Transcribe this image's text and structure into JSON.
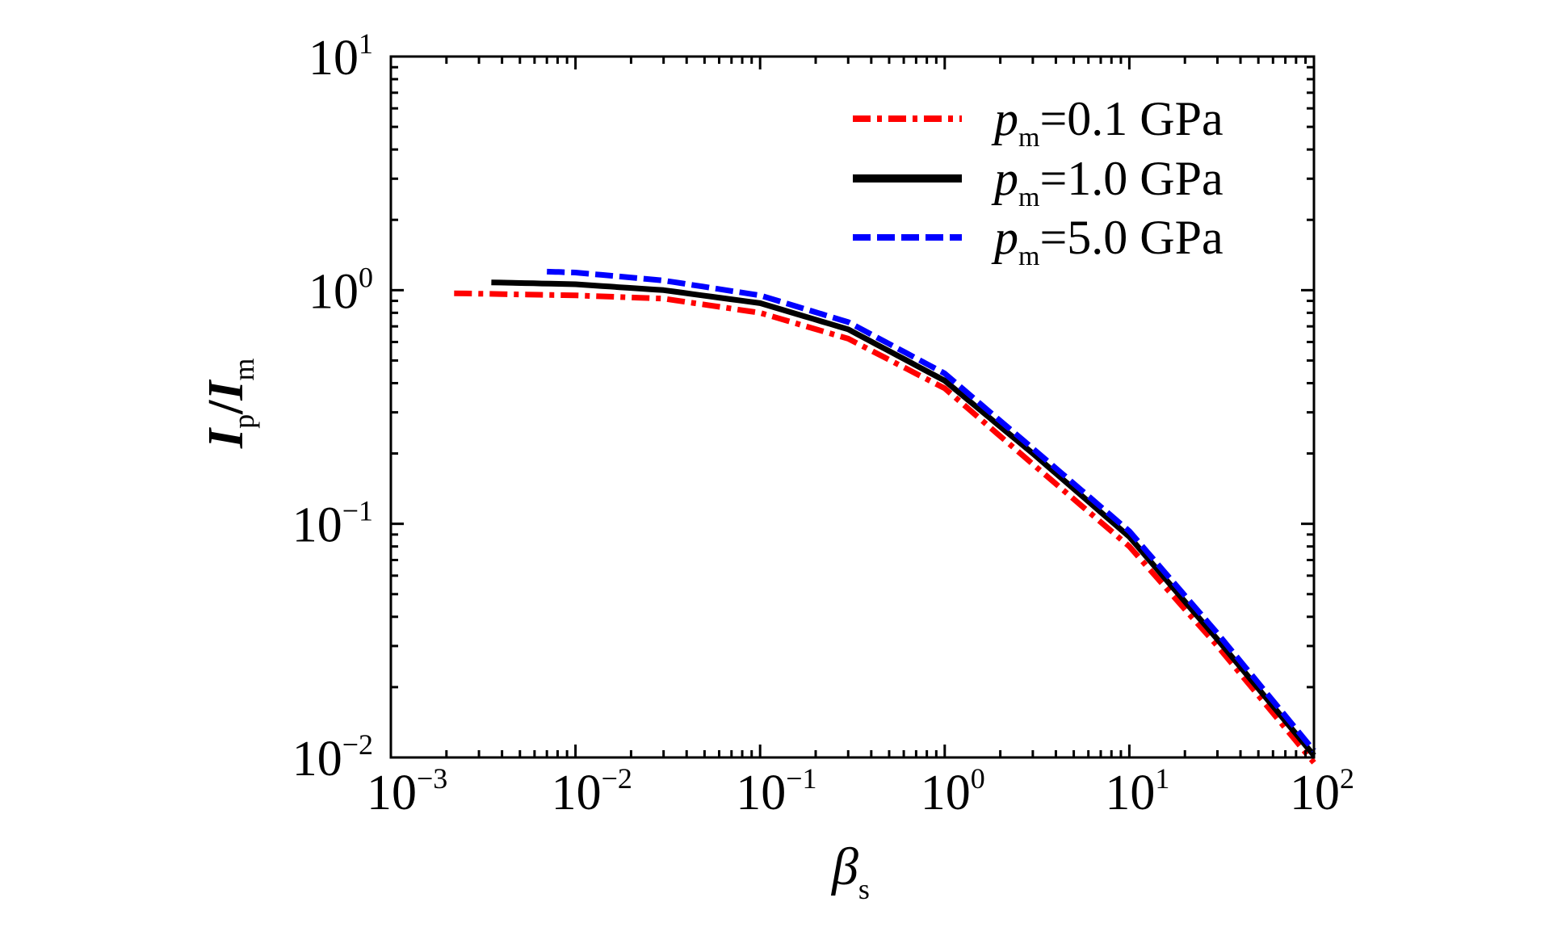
{
  "chart_data": {
    "type": "line",
    "title": "",
    "xlabel": {
      "main": "β",
      "sub": "s"
    },
    "ylabel": {
      "a": "I",
      "a_sub": "p",
      "sep": "/",
      "b": "I",
      "b_sub": "m"
    },
    "xscale": "log",
    "yscale": "log",
    "xlim": [
      0.001,
      100
    ],
    "ylim": [
      0.01,
      10
    ],
    "x_ticks": [
      {
        "base": "10",
        "exp": "−3",
        "v": -3
      },
      {
        "base": "10",
        "exp": "−2",
        "v": -2
      },
      {
        "base": "10",
        "exp": "−1",
        "v": -1
      },
      {
        "base": "10",
        "exp": "0",
        "v": 0
      },
      {
        "base": "10",
        "exp": "1",
        "v": 1
      },
      {
        "base": "10",
        "exp": "2",
        "v": 2
      }
    ],
    "y_ticks": [
      {
        "base": "10",
        "exp": "−2",
        "v": -2
      },
      {
        "base": "10",
        "exp": "−1",
        "v": -1
      },
      {
        "base": "10",
        "exp": "0",
        "v": 0
      },
      {
        "base": "10",
        "exp": "1",
        "v": 1
      }
    ],
    "grid": false,
    "legend_position": "top-right",
    "series": [
      {
        "name": "p_m=0.1 GPa",
        "label_var": "p",
        "label_sub": "m",
        "label_rest": "=0.1 GPa",
        "color": "#ff0000",
        "dash": "dashdot",
        "x": [
          0.0022,
          0.01,
          0.03,
          0.1,
          0.3,
          1,
          3,
          10,
          30,
          100
        ],
        "y": [
          0.97,
          0.95,
          0.92,
          0.8,
          0.62,
          0.38,
          0.18,
          0.08,
          0.03,
          0.0095
        ]
      },
      {
        "name": "p_m=1.0 GPa",
        "label_var": "p",
        "label_sub": "m",
        "label_rest": "=1.0 GPa",
        "color": "#000000",
        "dash": "solid",
        "x": [
          0.0035,
          0.01,
          0.03,
          0.1,
          0.3,
          1,
          3,
          10,
          30,
          100
        ],
        "y": [
          1.08,
          1.06,
          1.0,
          0.88,
          0.68,
          0.41,
          0.2,
          0.088,
          0.032,
          0.0102
        ]
      },
      {
        "name": "p_m=5.0 GPa",
        "label_var": "p",
        "label_sub": "m",
        "label_rest": "=5.0 GPa",
        "color": "#0000ff",
        "dash": "dashed",
        "x": [
          0.007,
          0.01,
          0.03,
          0.1,
          0.3,
          1,
          3,
          10,
          30,
          100
        ],
        "y": [
          1.2,
          1.19,
          1.1,
          0.95,
          0.73,
          0.44,
          0.21,
          0.093,
          0.034,
          0.0107
        ]
      }
    ]
  }
}
